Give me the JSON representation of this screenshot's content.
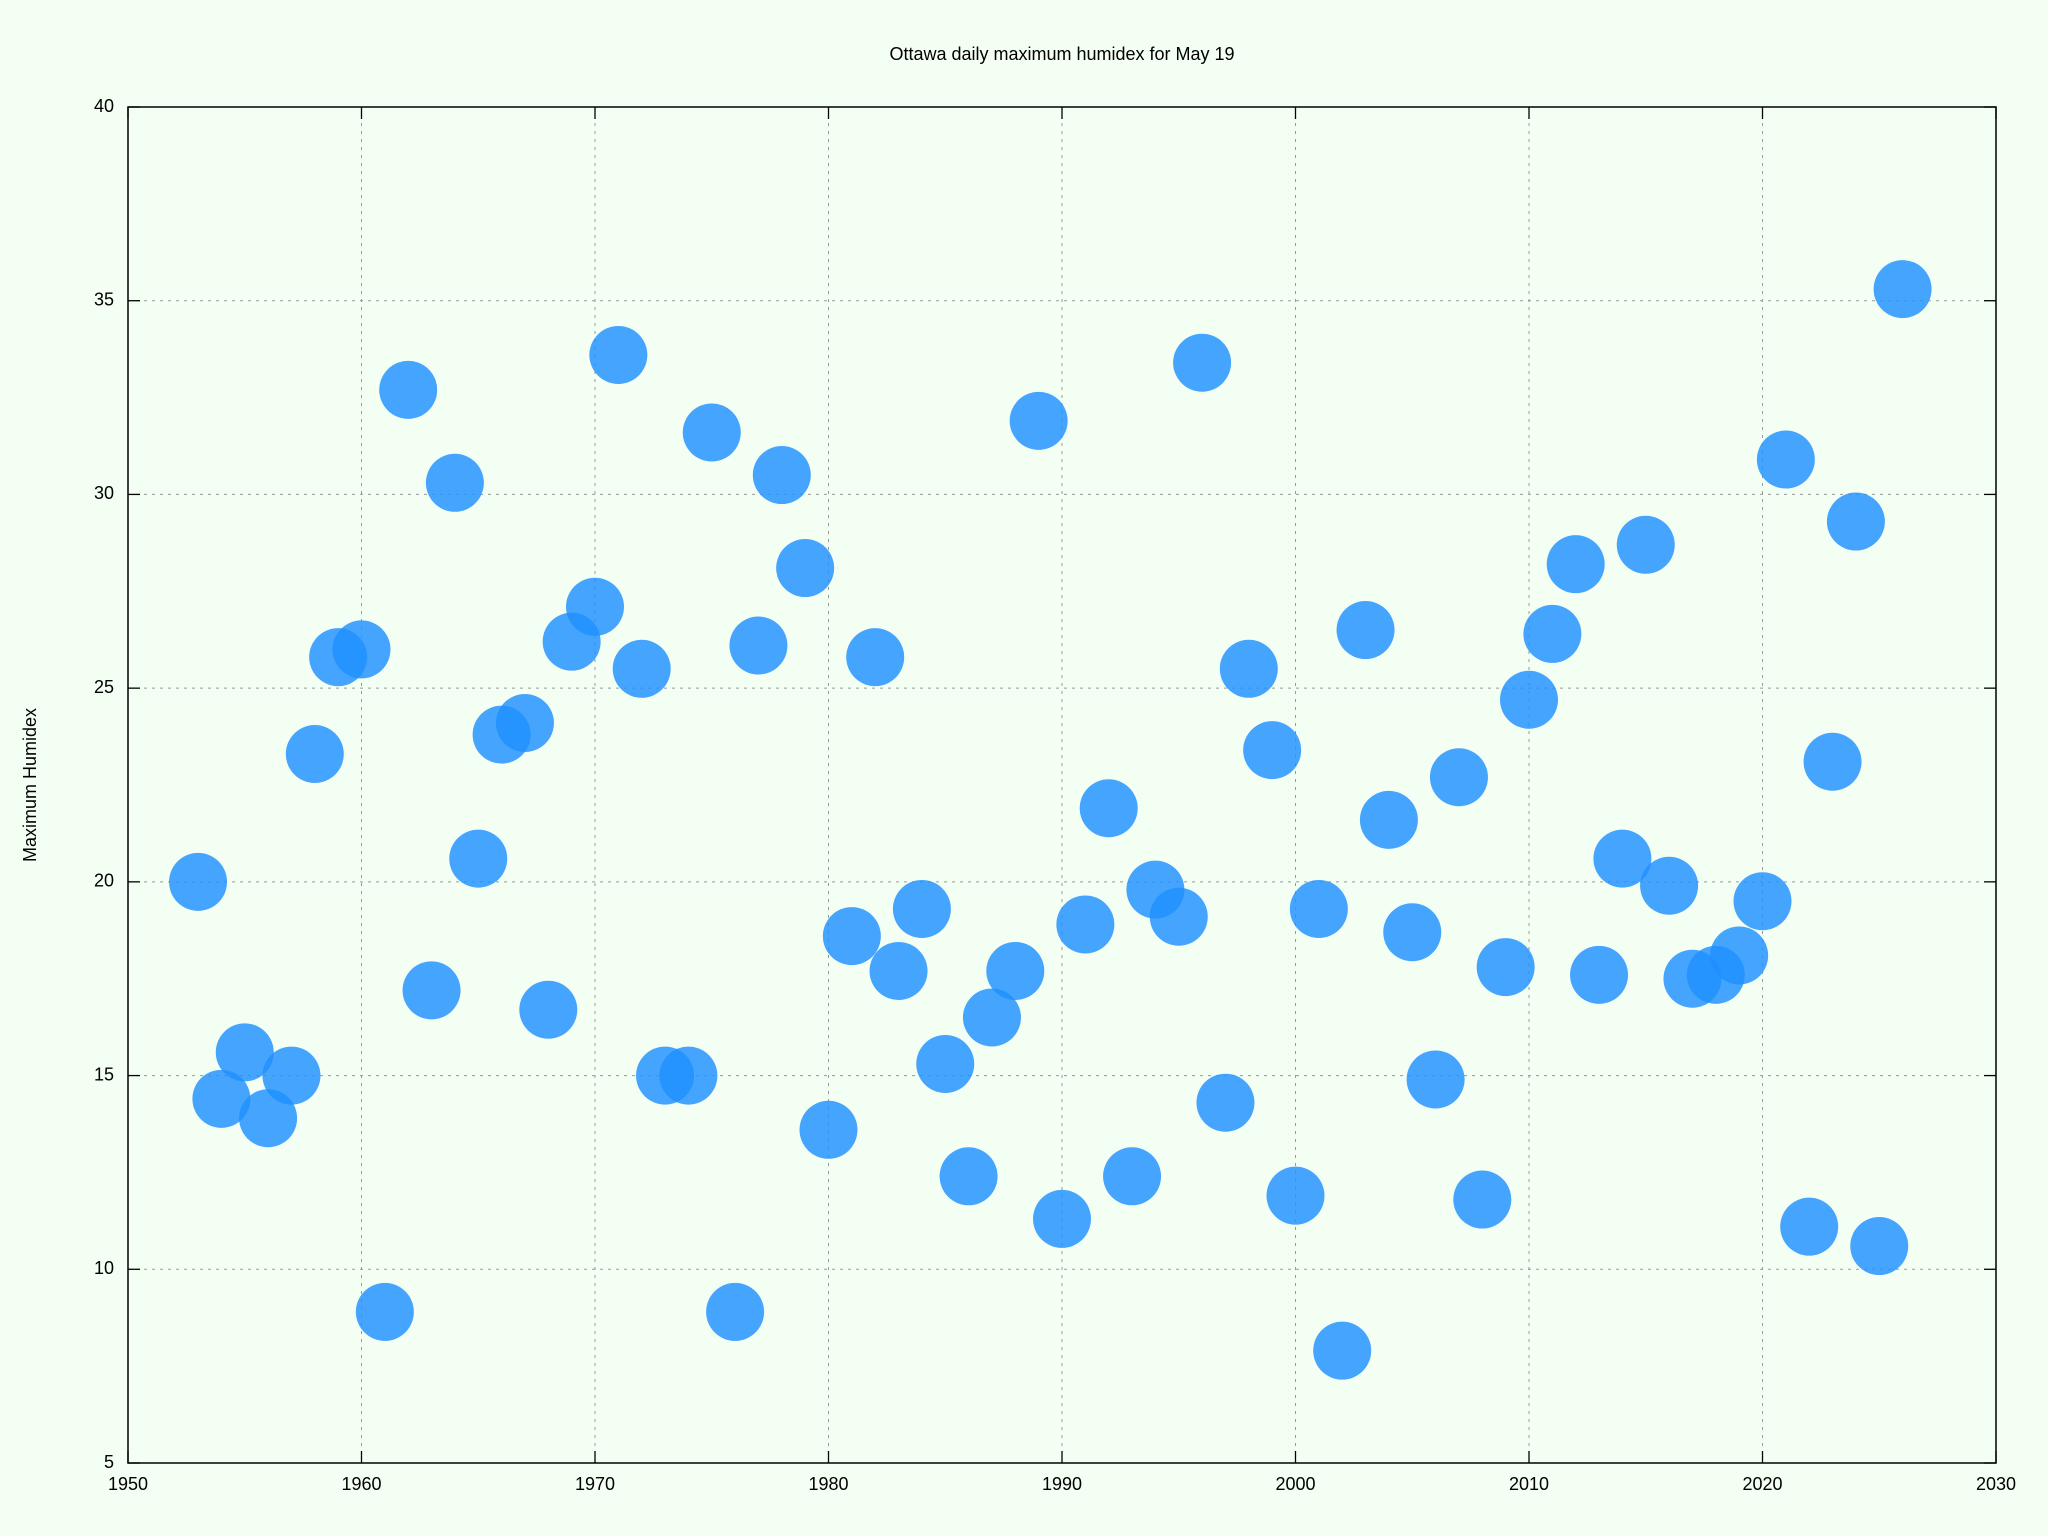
{
  "chart_data": {
    "type": "scatter",
    "title": "Ottawa daily maximum humidex for May 19",
    "y_label": "Maximum Humidex",
    "x": [
      1953,
      1954,
      1955,
      1956,
      1957,
      1958,
      1959,
      1960,
      1961,
      1962,
      1963,
      1964,
      1965,
      1966,
      1967,
      1968,
      1969,
      1970,
      1971,
      1972,
      1973,
      1974,
      1975,
      1976,
      1977,
      1978,
      1979,
      1980,
      1981,
      1982,
      1983,
      1984,
      1985,
      1986,
      1987,
      1988,
      1989,
      1990,
      1991,
      1992,
      1993,
      1994,
      1995,
      1996,
      1997,
      1998,
      1999,
      2000,
      2001,
      2002,
      2003,
      2004,
      2005,
      2006,
      2007,
      2008,
      2009,
      2010,
      2011,
      2012,
      2013,
      2014,
      2015,
      2016,
      2017,
      2018,
      2019,
      2020,
      2021,
      2022,
      2023,
      2024,
      2025,
      2026
    ],
    "values": [
      20.0,
      14.4,
      15.6,
      13.9,
      15.0,
      23.3,
      25.8,
      26.0,
      8.9,
      32.7,
      17.2,
      30.3,
      20.6,
      23.8,
      24.1,
      16.7,
      26.2,
      27.1,
      33.6,
      25.5,
      15.0,
      15.0,
      31.6,
      8.9,
      26.1,
      30.5,
      28.1,
      13.6,
      18.6,
      25.8,
      17.7,
      19.3,
      15.3,
      12.4,
      16.5,
      17.7,
      31.9,
      11.3,
      18.9,
      21.9,
      12.4,
      19.8,
      19.1,
      33.4,
      14.3,
      25.5,
      23.4,
      11.9,
      19.3,
      7.9,
      26.5,
      21.6,
      18.7,
      14.9,
      22.7,
      11.8,
      17.8,
      24.7,
      26.4,
      28.2,
      17.6,
      20.6,
      28.7,
      19.9,
      17.5,
      17.6,
      18.1,
      19.5,
      30.9,
      11.1,
      23.1,
      29.3,
      10.6,
      35.3
    ],
    "color": "#1e90ff",
    "xlim": [
      1950,
      2030
    ],
    "xticks": [
      1950,
      1960,
      1970,
      1980,
      1990,
      2000,
      2010,
      2020,
      2030
    ],
    "ylim": [
      5,
      40
    ],
    "yticks": [
      5,
      10,
      15,
      20,
      25,
      30,
      35,
      40
    ],
    "grid": true
  }
}
